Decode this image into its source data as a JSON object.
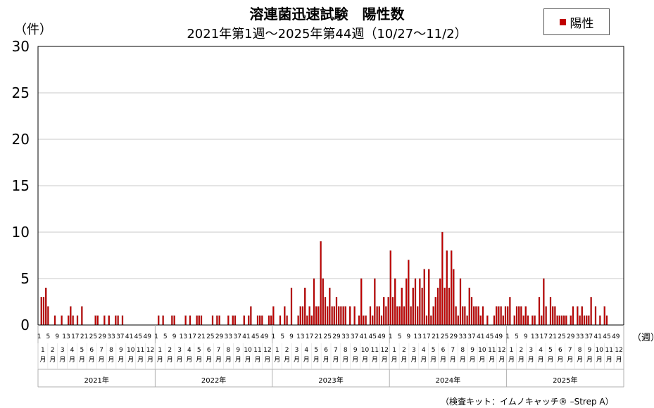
{
  "title": "溶連菌迅速試験　陽性数",
  "subtitle": "2021年第1週～2025年第44週（10/27～11/2）",
  "legend": {
    "label": "陽性",
    "color": "#c00000"
  },
  "y_unit": "（件）",
  "x_unit": "（週）",
  "note": "（検査キット：イムノキャッチ® –Strep A）",
  "colors": {
    "bar": "#c00000",
    "bar_edge": "#7a0000",
    "grid": "#c8c8c8",
    "axis": "#000000"
  },
  "chart_data": {
    "type": "bar",
    "ylim": [
      0,
      30
    ],
    "yticks": [
      0,
      5,
      10,
      15,
      20,
      25,
      30
    ],
    "grid": true,
    "legend_position": "top-right",
    "week_tick_labels": [
      "1",
      "5",
      "9",
      "13",
      "17",
      "21",
      "25",
      "29",
      "33",
      "37",
      "41",
      "45",
      "49"
    ],
    "month_labels": [
      "1月",
      "2月",
      "3月",
      "4月",
      "5月",
      "6月",
      "7月",
      "8月",
      "9月",
      "10月",
      "11月",
      "12月"
    ],
    "year_labels": [
      "2021年",
      "2022年",
      "2023年",
      "2024年",
      "2025年"
    ],
    "series": [
      {
        "name": "陽性",
        "years": [
          {
            "year": "2021年",
            "values": [
              0,
              3,
              3,
              4,
              2,
              0,
              0,
              1,
              0,
              0,
              1,
              0,
              0,
              1,
              2,
              1,
              0,
              1,
              0,
              2,
              0,
              0,
              0,
              0,
              0,
              1,
              1,
              0,
              0,
              1,
              0,
              1,
              0,
              0,
              1,
              1,
              0,
              1,
              0,
              0,
              0,
              0,
              0,
              0,
              0,
              0,
              0,
              0,
              0,
              0,
              0,
              0
            ]
          },
          {
            "year": "2022年",
            "values": [
              0,
              1,
              0,
              1,
              0,
              0,
              0,
              1,
              1,
              0,
              0,
              0,
              0,
              1,
              0,
              1,
              0,
              0,
              1,
              1,
              1,
              0,
              0,
              0,
              0,
              1,
              0,
              1,
              1,
              0,
              0,
              0,
              1,
              0,
              1,
              1,
              0,
              0,
              0,
              1,
              0,
              1,
              2,
              0,
              0,
              1,
              1,
              1,
              0,
              0,
              1,
              1
            ]
          },
          {
            "year": "2023年",
            "values": [
              2,
              0,
              0,
              1,
              0,
              2,
              1,
              0,
              4,
              0,
              0,
              1,
              2,
              2,
              4,
              1,
              2,
              1,
              5,
              2,
              2,
              9,
              5,
              3,
              2,
              4,
              2,
              2,
              3,
              2,
              2,
              2,
              2,
              0,
              2,
              0,
              2,
              0,
              1,
              5,
              1,
              1,
              0,
              2,
              1,
              5,
              2,
              2,
              1,
              3,
              2,
              3
            ]
          },
          {
            "year": "2024年",
            "values": [
              8,
              3,
              5,
              2,
              2,
              4,
              2,
              5,
              7,
              2,
              4,
              5,
              2,
              5,
              4,
              6,
              1,
              6,
              1,
              2,
              3,
              4,
              5,
              10,
              4,
              8,
              4,
              8,
              6,
              2,
              1,
              5,
              2,
              2,
              1,
              4,
              3,
              2,
              2,
              2,
              1,
              2,
              0,
              1,
              0,
              0,
              1,
              2,
              2,
              2,
              1,
              2
            ]
          },
          {
            "year": "2025年",
            "values": [
              2,
              3,
              0,
              1,
              2,
              2,
              2,
              1,
              2,
              1,
              0,
              1,
              1,
              0,
              3,
              1,
              5,
              2,
              0,
              3,
              2,
              2,
              1,
              1,
              1,
              1,
              1,
              0,
              1,
              2,
              0,
              2,
              1,
              2,
              1,
              1,
              1,
              3,
              0,
              2,
              0,
              1,
              0,
              2,
              1,
              0,
              0,
              0,
              0,
              0,
              0,
              0
            ]
          }
        ]
      }
    ]
  }
}
